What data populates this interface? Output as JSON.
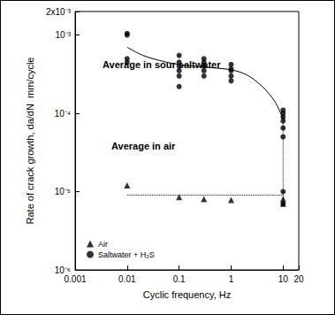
{
  "chart_data": {
    "type": "scatter",
    "x_label": "Cyclic frequency, Hz",
    "y_label": "Rate of crack growth, da/dN  mm/cycle",
    "log": true,
    "grid": false,
    "legend": "lower left",
    "xlim": [
      0.001,
      20
    ],
    "xticks": [
      0.001,
      0.01,
      0.1,
      1,
      10,
      20
    ],
    "ylim": [
      1e-06,
      0.002
    ],
    "yticks": [
      {
        "value": 1e-06,
        "label": "10⁻⁶"
      },
      {
        "value": 1e-05,
        "label": "10⁻⁵"
      },
      {
        "value": 0.0001,
        "label": "10⁻⁴"
      },
      {
        "value": 0.001,
        "label": "10⁻³"
      },
      {
        "value": 0.002,
        "label": "2x10⁻³"
      }
    ],
    "annotations": [
      {
        "text": "Average in sour saltwater"
      },
      {
        "text": "Average in air"
      }
    ],
    "series": [
      {
        "name": "Air",
        "type": "scatter",
        "marker": "triangle",
        "color": "#000000",
        "x": [
          0.01,
          0.1,
          0.3,
          1,
          10,
          10
        ],
        "values": [
          1.2e-05,
          8.5e-06,
          8e-06,
          7.8e-06,
          8e-06,
          7e-06
        ]
      },
      {
        "name": "Saltwater + H₂S",
        "type": "scatter",
        "marker": "circle",
        "color": "#000000",
        "x": [
          0.01,
          0.01,
          0.01,
          0.01,
          0.1,
          0.1,
          0.1,
          0.1,
          0.1,
          0.1,
          0.3,
          0.3,
          0.3,
          0.3,
          0.3,
          1,
          1,
          1,
          1,
          1,
          10,
          10,
          10,
          10,
          10,
          10,
          10,
          10
        ],
        "values": [
          0.00105,
          0.001,
          0.0005,
          0.00045,
          0.00055,
          0.00045,
          0.0004,
          0.00035,
          0.0003,
          0.00022,
          0.0005,
          0.00045,
          0.0004,
          0.00035,
          0.0003,
          0.00042,
          0.00037,
          0.00035,
          0.0003,
          0.00026,
          0.00011,
          0.0001,
          9e-05,
          8e-05,
          6.5e-05,
          5e-05,
          1e-05,
          7e-06
        ]
      },
      {
        "type": "line",
        "line_style": "solid",
        "color": "#000000",
        "x": [
          0.01,
          0.02,
          0.05,
          0.1,
          0.3,
          1,
          2,
          4,
          7,
          10
        ],
        "values": [
          0.0007,
          0.00055,
          0.00046,
          0.00042,
          0.00039,
          0.00036,
          0.00031,
          0.00022,
          0.00014,
          8.5e-05
        ]
      },
      {
        "type": "line",
        "line_style": "dotted",
        "color": "#000000",
        "x": [
          0.01,
          10
        ],
        "values": [
          9e-06,
          9e-06
        ]
      },
      {
        "type": "line",
        "line_style": "dotted",
        "color": "#000000",
        "x": [
          10,
          10
        ],
        "values": [
          8.5e-05,
          7e-06
        ]
      }
    ]
  }
}
